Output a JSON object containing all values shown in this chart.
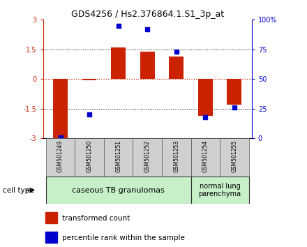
{
  "title": "GDS4256 / Hs2.376864.1.S1_3p_at",
  "samples": [
    "GSM501249",
    "GSM501250",
    "GSM501251",
    "GSM501252",
    "GSM501253",
    "GSM501254",
    "GSM501255"
  ],
  "transformed_count": [
    -3.0,
    -0.05,
    1.6,
    1.4,
    1.15,
    -1.85,
    -1.3
  ],
  "percentile_rank": [
    0.5,
    20,
    95,
    92,
    73,
    18,
    26
  ],
  "ylim_left": [
    -3,
    3
  ],
  "ylim_right": [
    0,
    100
  ],
  "yticks_left": [
    -3,
    -1.5,
    0,
    1.5,
    3
  ],
  "ytick_labels_left": [
    "-3",
    "-1.5",
    "0",
    "1.5",
    "3"
  ],
  "yticks_right": [
    0,
    25,
    50,
    75,
    100
  ],
  "ytick_labels_right": [
    "0",
    "25",
    "50",
    "75",
    "100%"
  ],
  "group1_label": "caseous TB granulomas",
  "group2_label": "normal lung\nparenchyma",
  "cell_type_label": "cell type",
  "legend_bar_label": "transformed count",
  "legend_dot_label": "percentile rank within the sample",
  "bar_color": "#cc2200",
  "dot_color": "#0000cc",
  "bar_width": 0.5,
  "dotted_lines": [
    -1.5,
    0,
    1.5
  ],
  "group1_bg": "#c8f0c8",
  "group2_bg": "#c8f0c8",
  "sample_bg": "#d0d0d0",
  "plot_bg": "#ffffff"
}
